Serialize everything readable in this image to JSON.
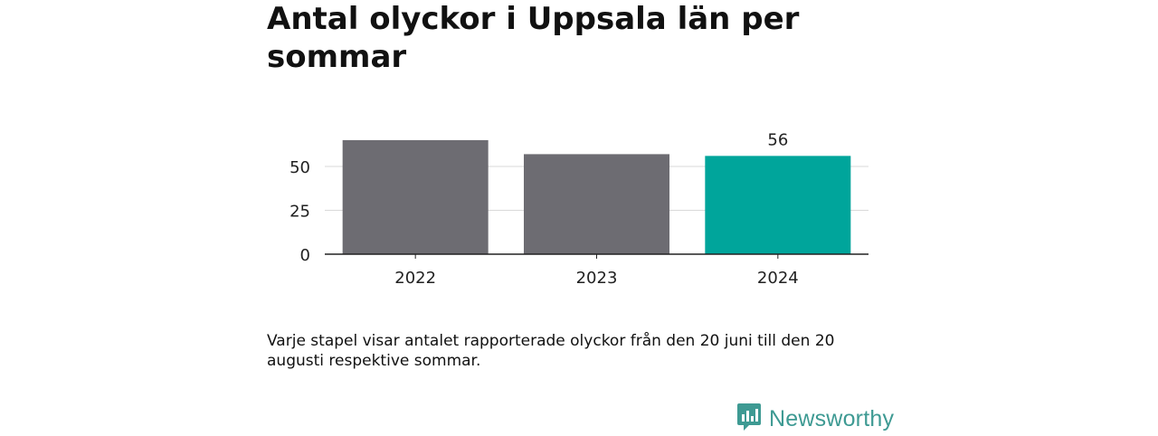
{
  "title": "Antal olyckor i Uppsala län per sommar",
  "note": "Varje stapel visar antalet rapporterade olyckor från den 20 juni till den 20 augusti respektive sommar.",
  "brand": {
    "name": "Newsworthy",
    "icon": "newsworthy-logo-icon",
    "color": "#3e9a93"
  },
  "colors": {
    "default_bar": "#6d6c72",
    "highlight_bar": "#00a59b",
    "grid": "#d9d9d9",
    "axis": "#222222"
  },
  "chart_data": {
    "type": "bar",
    "categories": [
      "2022",
      "2023",
      "2024"
    ],
    "values": [
      65,
      57,
      56
    ],
    "highlight_index": 2,
    "data_labels": [
      "",
      "",
      "56"
    ],
    "y_ticks": [
      0,
      25,
      50
    ],
    "ylim": [
      0,
      75
    ],
    "grid": true,
    "title": "Antal olyckor i Uppsala län per sommar",
    "xlabel": "",
    "ylabel": ""
  }
}
